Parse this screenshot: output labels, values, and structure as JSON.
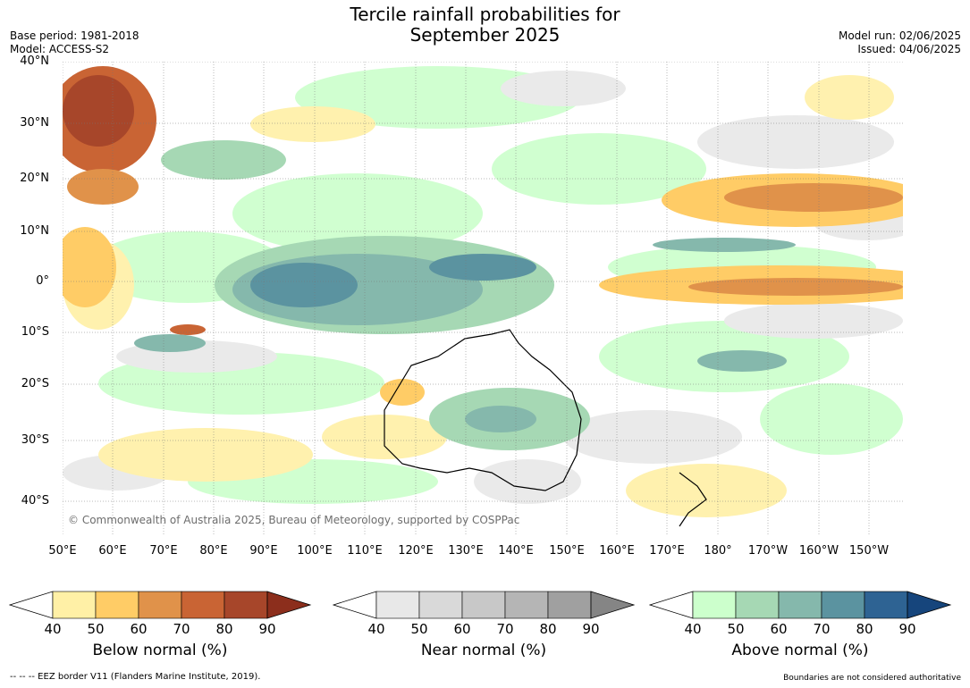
{
  "title": [
    "Tercile rainfall probabilities for",
    "September 2025"
  ],
  "meta_left": [
    "Base period: 1981-2018",
    "Model: ACCESS-S2"
  ],
  "meta_right": [
    "Model run: 02/06/2025",
    "Issued: 04/06/2025"
  ],
  "map": {
    "lat_labels": [
      "40°N",
      "30°N",
      "20°N",
      "10°N",
      "0°",
      "10°S",
      "20°S",
      "30°S",
      "40°S"
    ],
    "lon_labels": [
      "50°E",
      "60°E",
      "70°E",
      "80°E",
      "90°E",
      "100°E",
      "110°E",
      "120°E",
      "130°E",
      "140°E",
      "150°E",
      "160°E",
      "170°E",
      "180°",
      "170°W",
      "160°W",
      "150°W"
    ],
    "credit": "© Commonwealth of Australia 2025, Bureau of Meteorology, supported by COSPPac"
  },
  "colorbars": [
    {
      "label": "Below normal (%)",
      "ticks": [
        "40",
        "50",
        "60",
        "70",
        "80",
        "90"
      ],
      "colors": [
        "#fff0a6",
        "#ffcc66",
        "#e0924a",
        "#c96434",
        "#a7462a",
        "#8c2e1c"
      ]
    },
    {
      "label": "Near normal (%)",
      "ticks": [
        "40",
        "50",
        "60",
        "70",
        "80",
        "90"
      ],
      "colors": [
        "#e8e8e8",
        "#d9d9d9",
        "#c8c8c8",
        "#b5b5b5",
        "#a0a0a0",
        "#858585"
      ]
    },
    {
      "label": "Above normal (%)",
      "ticks": [
        "40",
        "50",
        "60",
        "70",
        "80",
        "90"
      ],
      "colors": [
        "#ccffcc",
        "#a6d8b4",
        "#85b8ac",
        "#5b93a0",
        "#2e6393",
        "#16457c"
      ]
    }
  ],
  "footer_left": "--  --  -- EEZ border V11 (Flanders Marine Institute, 2019).",
  "footer_right": "Boundaries are not considered authoritative"
}
